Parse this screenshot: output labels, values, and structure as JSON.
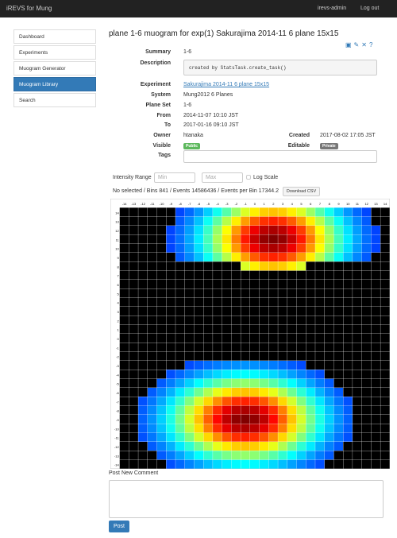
{
  "nav": {
    "brand": "iREVS for Mung",
    "user": "irevs-admin",
    "logout": "Log out"
  },
  "sidebar": [
    "Dashboard",
    "Experiments",
    "Muogram Generator",
    "Muogram Library",
    "Search"
  ],
  "title": "plane 1-6 muogram for exp(1) Sakurajima 2014-11 6 plane 15x15",
  "fields": [
    [
      "Summary",
      "1-6"
    ],
    [
      "Description",
      "created by StatsTask.create_task()"
    ],
    [
      "Experiment",
      "Sakurajima 2014-11 6 plane 15x15"
    ],
    [
      "System",
      "Mung2012 6 Planes"
    ],
    [
      "Plane Set",
      "1-6"
    ],
    [
      "From",
      "2014-11-07 10:10 JST"
    ],
    [
      "To",
      "2017-01-16 09:10 JST"
    ],
    [
      "Owner",
      "htanaka"
    ],
    [
      "Visible",
      "Public"
    ],
    [
      "Tags",
      ""
    ]
  ],
  "side_fields": [
    [
      "Created",
      "2017-08-02 17:05 JST"
    ],
    [
      "Editable",
      "Private"
    ]
  ],
  "intensity": {
    "label": "Intensity Range",
    "min": "Min",
    "max": "Max",
    "log": "Log Scale"
  },
  "stats": "No selected / Bins 841 / Events 14586436 / Events per Bin 17344.2",
  "download": "Download CSV",
  "heatmap": {
    "x_labels": [
      -14,
      -13,
      -12,
      -11,
      -10,
      -9,
      -8,
      -7,
      -6,
      -5,
      -4,
      -3,
      -2,
      -1,
      0,
      1,
      2,
      3,
      4,
      5,
      6,
      7,
      8,
      9,
      10,
      11,
      12,
      13,
      14
    ],
    "y_labels": [
      14,
      13,
      12,
      11,
      10,
      9,
      8,
      7,
      6,
      5,
      4,
      3,
      2,
      1,
      0,
      -1,
      -2,
      -3,
      -4,
      -5,
      -6,
      -7,
      -8,
      -9,
      -10,
      -11,
      -12,
      -13,
      -14
    ]
  },
  "comment": {
    "label": "Post New Comment",
    "button": "Post"
  }
}
